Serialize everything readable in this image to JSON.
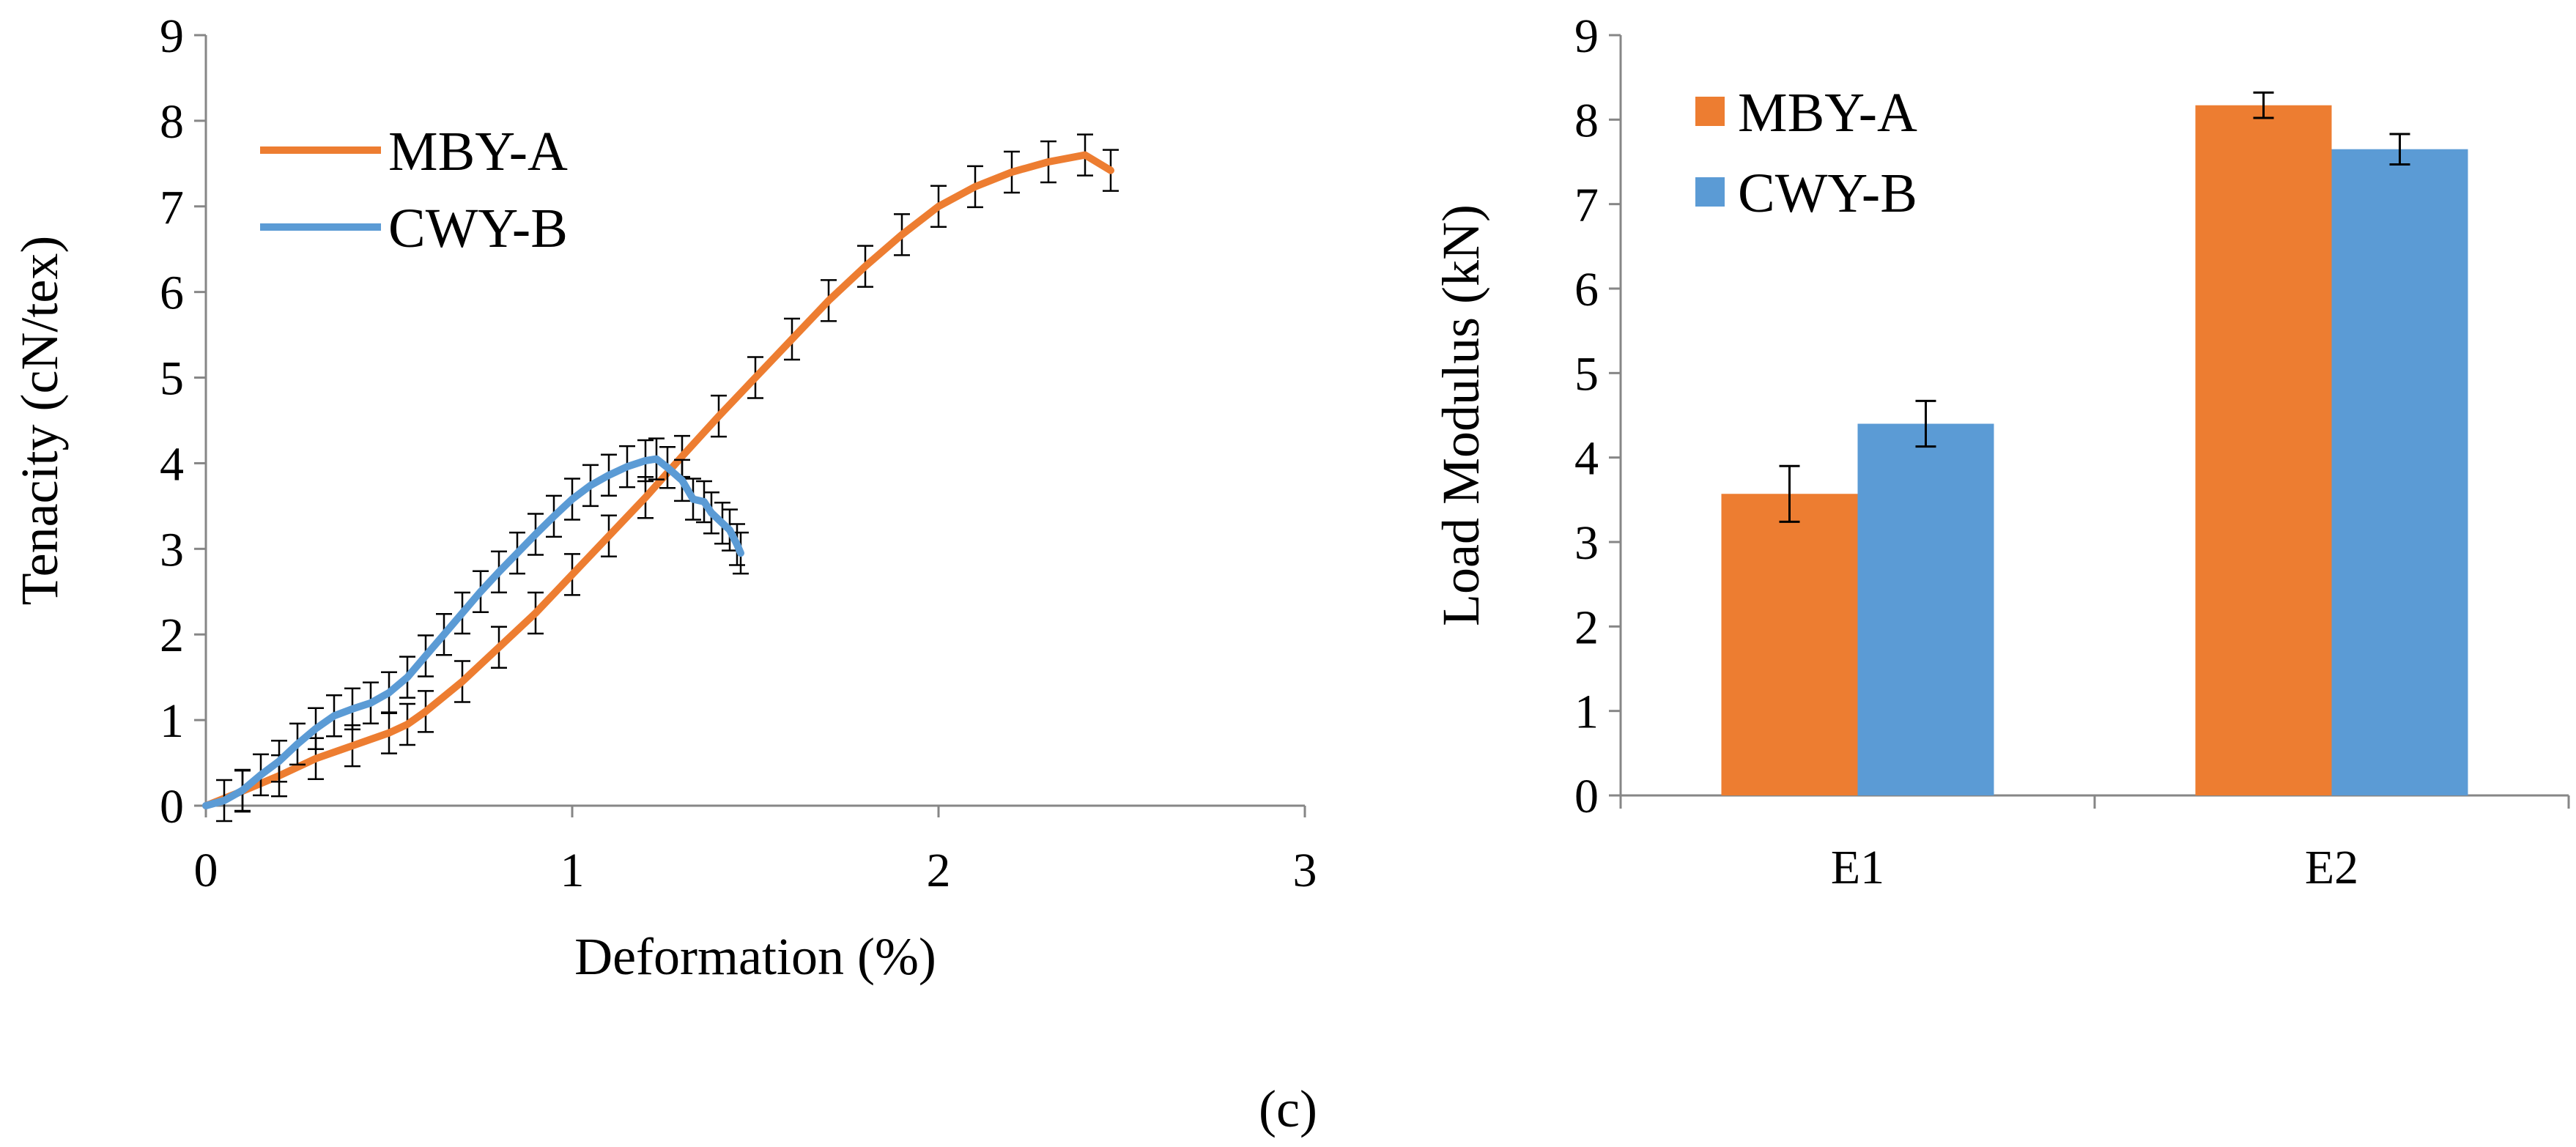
{
  "figure": {
    "caption": "(c)"
  },
  "chart_data": [
    {
      "type": "line",
      "xlabel": "Deformation (%)",
      "ylabel": "Tenacity (cN/tex)",
      "xlim": [
        0,
        3
      ],
      "ylim": [
        0,
        9
      ],
      "xticks": [
        0,
        1,
        2,
        3
      ],
      "yticks": [
        0,
        1,
        2,
        3,
        4,
        5,
        6,
        7,
        8,
        9
      ],
      "legend_position": "top-left",
      "series": [
        {
          "name": "MBY-A",
          "color": "#ED7D31",
          "error_bars": true,
          "points": [
            [
              0,
              0
            ],
            [
              0.1,
              0.17
            ],
            [
              0.2,
              0.35
            ],
            [
              0.3,
              0.55
            ],
            [
              0.4,
              0.7
            ],
            [
              0.5,
              0.85
            ],
            [
              0.55,
              0.95
            ],
            [
              0.6,
              1.1
            ],
            [
              0.7,
              1.45
            ],
            [
              0.8,
              1.85
            ],
            [
              0.9,
              2.25
            ],
            [
              1.0,
              2.7
            ],
            [
              1.1,
              3.15
            ],
            [
              1.2,
              3.6
            ],
            [
              1.3,
              4.08
            ],
            [
              1.4,
              4.55
            ],
            [
              1.5,
              5.0
            ],
            [
              1.6,
              5.45
            ],
            [
              1.7,
              5.9
            ],
            [
              1.8,
              6.3
            ],
            [
              1.9,
              6.67
            ],
            [
              2.0,
              7.0
            ],
            [
              2.1,
              7.23
            ],
            [
              2.2,
              7.4
            ],
            [
              2.3,
              7.52
            ],
            [
              2.4,
              7.6
            ],
            [
              2.47,
              7.42
            ]
          ]
        },
        {
          "name": "CWY-B",
          "color": "#5B9BD5",
          "error_bars": true,
          "points": [
            [
              0,
              0
            ],
            [
              0.05,
              0.06
            ],
            [
              0.1,
              0.18
            ],
            [
              0.15,
              0.36
            ],
            [
              0.2,
              0.52
            ],
            [
              0.25,
              0.72
            ],
            [
              0.3,
              0.9
            ],
            [
              0.35,
              1.05
            ],
            [
              0.4,
              1.13
            ],
            [
              0.45,
              1.2
            ],
            [
              0.5,
              1.32
            ],
            [
              0.55,
              1.5
            ],
            [
              0.6,
              1.75
            ],
            [
              0.65,
              2.0
            ],
            [
              0.7,
              2.25
            ],
            [
              0.75,
              2.5
            ],
            [
              0.8,
              2.73
            ],
            [
              0.85,
              2.95
            ],
            [
              0.9,
              3.17
            ],
            [
              0.95,
              3.38
            ],
            [
              1.0,
              3.58
            ],
            [
              1.05,
              3.74
            ],
            [
              1.1,
              3.86
            ],
            [
              1.15,
              3.96
            ],
            [
              1.2,
              4.03
            ],
            [
              1.23,
              4.05
            ],
            [
              1.26,
              3.95
            ],
            [
              1.3,
              3.8
            ],
            [
              1.33,
              3.58
            ],
            [
              1.36,
              3.55
            ],
            [
              1.38,
              3.42
            ],
            [
              1.41,
              3.3
            ],
            [
              1.43,
              3.22
            ],
            [
              1.45,
              3.05
            ],
            [
              1.46,
              2.95
            ]
          ]
        }
      ]
    },
    {
      "type": "bar",
      "xlabel": "",
      "ylabel": "Load Modulus (kN)",
      "ylim": [
        0,
        9
      ],
      "yticks": [
        0,
        1,
        2,
        3,
        4,
        5,
        6,
        7,
        8,
        9
      ],
      "categories": [
        "E1",
        "E2"
      ],
      "legend_position": "top-left",
      "series": [
        {
          "name": "MBY-A",
          "color": "#ED7D31",
          "values": [
            3.57,
            8.17
          ],
          "errors": [
            0.33,
            0.15
          ]
        },
        {
          "name": "CWY-B",
          "color": "#5B9BD5",
          "values": [
            4.4,
            7.65
          ],
          "errors": [
            0.27,
            0.18
          ]
        }
      ]
    }
  ]
}
